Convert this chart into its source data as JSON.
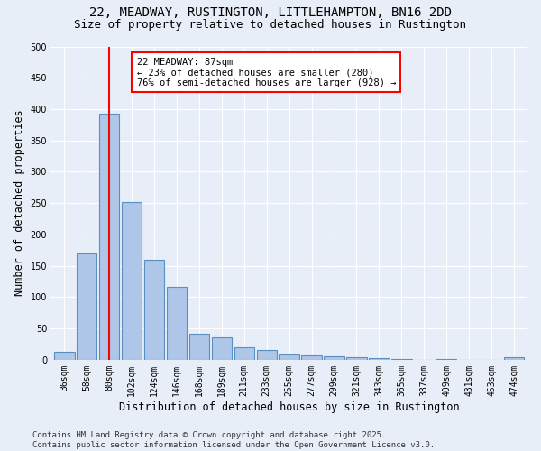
{
  "title_line1": "22, MEADWAY, RUSTINGTON, LITTLEHAMPTON, BN16 2DD",
  "title_line2": "Size of property relative to detached houses in Rustington",
  "xlabel": "Distribution of detached houses by size in Rustington",
  "ylabel": "Number of detached properties",
  "categories": [
    "36sqm",
    "58sqm",
    "80sqm",
    "102sqm",
    "124sqm",
    "146sqm",
    "168sqm",
    "189sqm",
    "211sqm",
    "233sqm",
    "255sqm",
    "277sqm",
    "299sqm",
    "321sqm",
    "343sqm",
    "365sqm",
    "387sqm",
    "409sqm",
    "431sqm",
    "453sqm",
    "474sqm"
  ],
  "values": [
    12,
    170,
    393,
    252,
    160,
    117,
    42,
    36,
    20,
    15,
    9,
    7,
    5,
    4,
    3,
    1,
    0,
    1,
    0,
    0,
    4
  ],
  "bar_color": "#aec6e8",
  "bar_edge_color": "#5a8fc2",
  "background_color": "#e8eef8",
  "vline_x_index": 2,
  "vline_color": "red",
  "annotation_text": "22 MEADWAY: 87sqm\n← 23% of detached houses are smaller (280)\n76% of semi-detached houses are larger (928) →",
  "annotation_box_color": "white",
  "annotation_box_edge": "red",
  "ylim": [
    0,
    500
  ],
  "yticks": [
    0,
    50,
    100,
    150,
    200,
    250,
    300,
    350,
    400,
    450,
    500
  ],
  "footer_text": "Contains HM Land Registry data © Crown copyright and database right 2025.\nContains public sector information licensed under the Open Government Licence v3.0.",
  "title_fontsize": 10,
  "subtitle_fontsize": 9,
  "axis_label_fontsize": 8.5,
  "tick_fontsize": 7,
  "footer_fontsize": 6.5
}
